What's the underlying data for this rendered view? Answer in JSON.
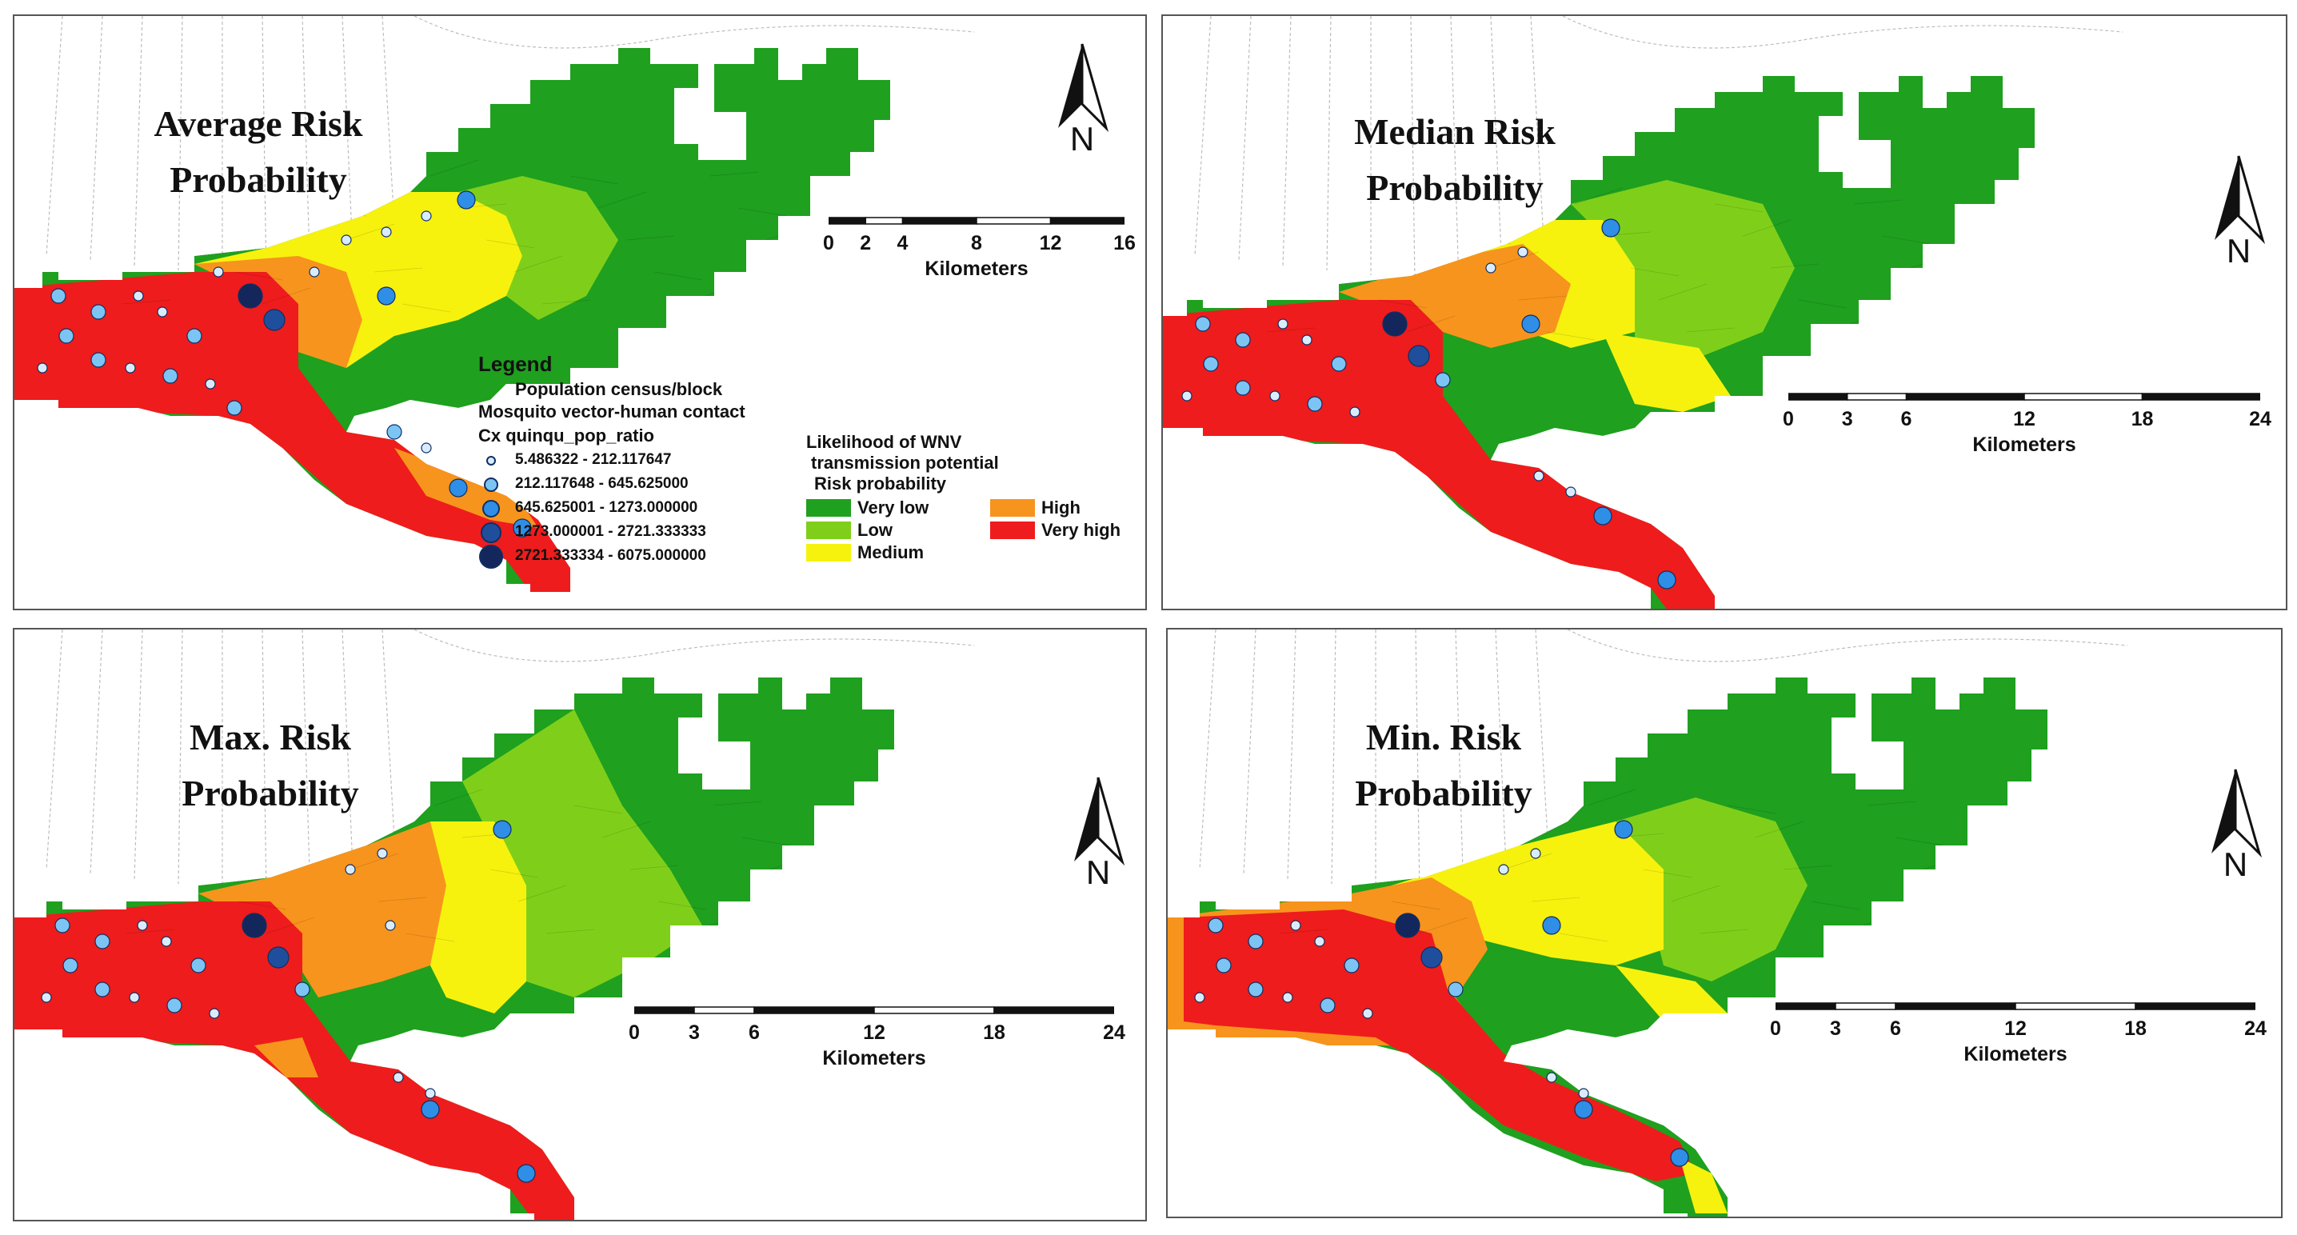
{
  "panels": [
    {
      "id": "average",
      "title_line1": "Average Risk",
      "title_line2": "Probability",
      "north_label": "N",
      "scale_ticks": [
        "0",
        "2",
        "4",
        "8",
        "12",
        "16"
      ],
      "scale_unit": "Kilometers"
    },
    {
      "id": "median",
      "title_line1": "Median Risk",
      "title_line2": "Probability",
      "north_label": "N",
      "scale_ticks": [
        "0",
        "3",
        "6",
        "12",
        "18",
        "24"
      ],
      "scale_unit": "Kilometers"
    },
    {
      "id": "max",
      "title_line1": "Max. Risk",
      "title_line2": "Probability",
      "north_label": "N",
      "scale_ticks": [
        "0",
        "3",
        "6",
        "12",
        "18",
        "24"
      ],
      "scale_unit": "Kilometers"
    },
    {
      "id": "min",
      "title_line1": "Min. Risk",
      "title_line2": "Probability",
      "north_label": "N",
      "scale_ticks": [
        "0",
        "3",
        "6",
        "12",
        "18",
        "24"
      ],
      "scale_unit": "Kilometers"
    }
  ],
  "legend": {
    "heading": "Legend",
    "population": "Population census/block",
    "contact": "Mosquito vector-human contact",
    "ratio_title": "Cx quinqu_pop_ratio",
    "ratio_classes": [
      {
        "label": "5.486322 - 212.117647",
        "color": "#d9ecff"
      },
      {
        "label": "212.117648 - 645.625000",
        "color": "#7cc4f4"
      },
      {
        "label": "645.625001 - 1273.000000",
        "color": "#2f8ee6"
      },
      {
        "label": "1273.000001 - 2721.333333",
        "color": "#1f4f9c"
      },
      {
        "label": "2721.333334 - 6075.000000",
        "color": "#14275c"
      }
    ],
    "likelihood_line1": "Likelihood of WNV",
    "likelihood_line2": "transmission potential",
    "risk_title": "Risk probability",
    "risk_classes": [
      {
        "label": "Very low",
        "color": "#1fa01f"
      },
      {
        "label": "Low",
        "color": "#7fcf1a"
      },
      {
        "label": "Medium",
        "color": "#f6f20e"
      },
      {
        "label": "High",
        "color": "#f7941d"
      },
      {
        "label": "Very high",
        "color": "#ee1c1c"
      }
    ]
  },
  "colors": {
    "very_low": "#1fa01f",
    "low": "#7fcf1a",
    "medium": "#f6f20e",
    "high": "#f7941d",
    "very_high": "#ee1c1c"
  }
}
